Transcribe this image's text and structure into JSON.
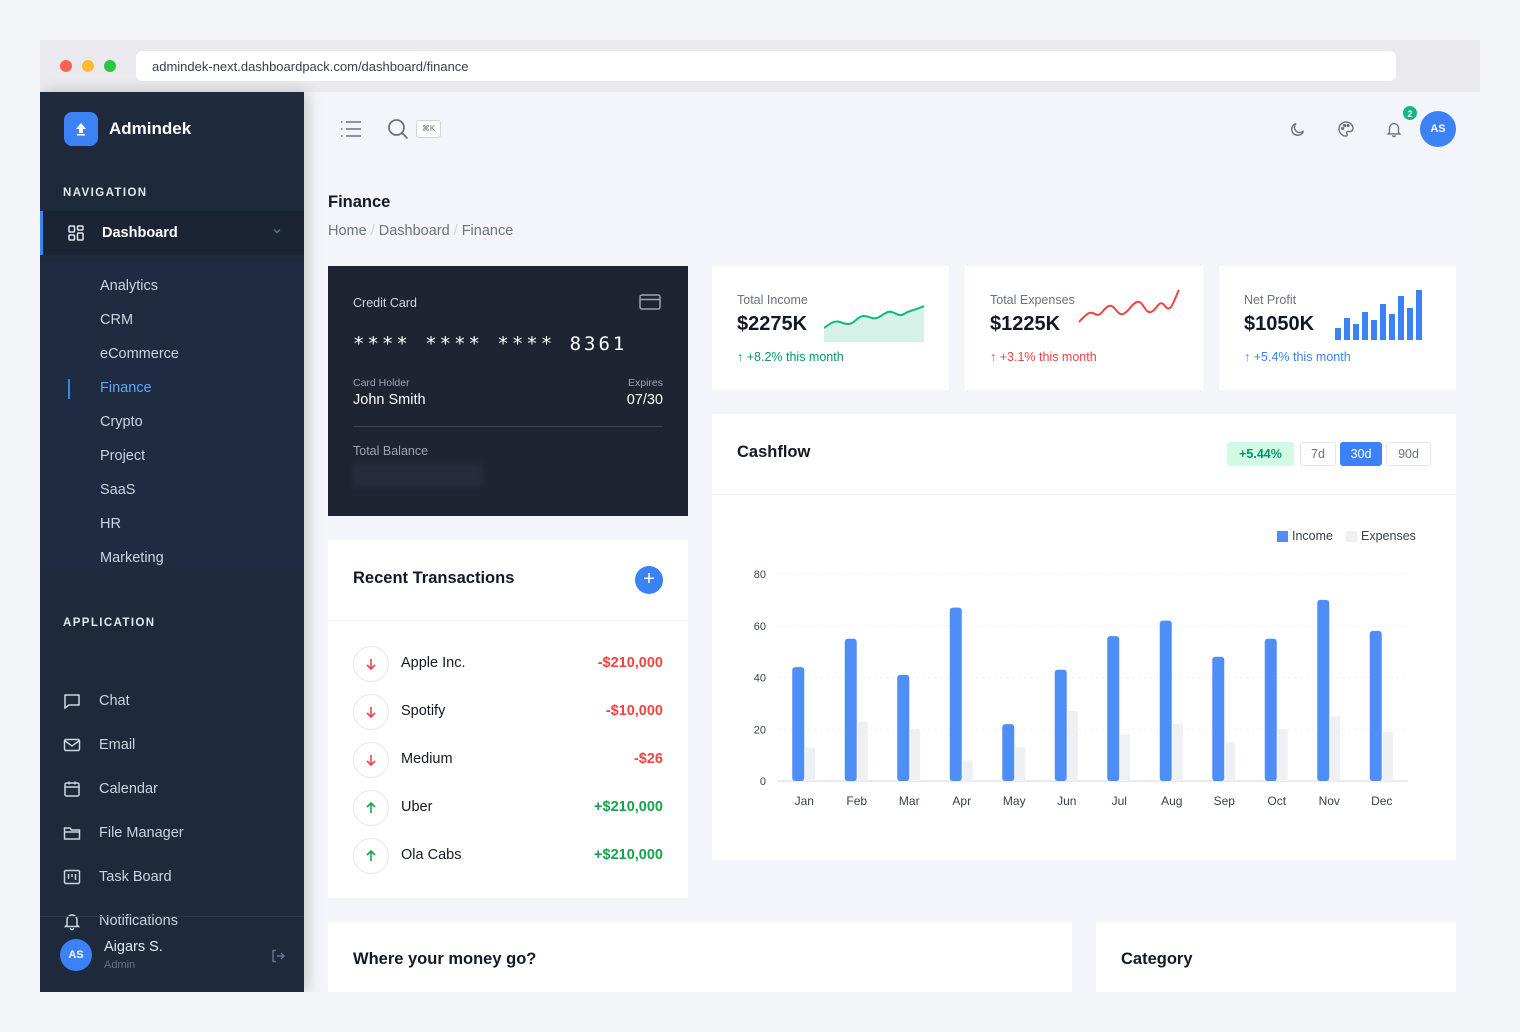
{
  "browser": {
    "url": "admindek-next.dashboardpack.com/dashboard/finance"
  },
  "sidebar": {
    "brand": "Admindek",
    "nav_title": "NAVIGATION",
    "dashboard_label": "Dashboard",
    "dashboard_items": [
      "Analytics",
      "CRM",
      "eCommerce",
      "Finance",
      "Crypto",
      "Project",
      "SaaS",
      "HR",
      "Marketing"
    ],
    "active_item": "Finance",
    "app_title": "APPLICATION",
    "app_items": [
      {
        "label": "Chat",
        "icon": "chat-icon"
      },
      {
        "label": "Email",
        "icon": "mail-icon"
      },
      {
        "label": "Calendar",
        "icon": "calendar-icon"
      },
      {
        "label": "File Manager",
        "icon": "folder-icon"
      },
      {
        "label": "Task Board",
        "icon": "kanban-icon"
      },
      {
        "label": "Notifications",
        "icon": "bell-icon"
      }
    ],
    "user": {
      "initials": "AS",
      "name": "Aigars S.",
      "role": "Admin"
    }
  },
  "topbar": {
    "shortcut": "⌘K",
    "notification_count": "2",
    "avatar_initials": "AS",
    "icons": [
      "menu-icon",
      "search-icon",
      "moon-icon",
      "palette-icon",
      "bell-icon"
    ]
  },
  "page": {
    "title": "Finance",
    "breadcrumb": [
      "Home",
      "Dashboard",
      "Finance"
    ]
  },
  "credit_card": {
    "label": "Credit Card",
    "masked": "**** **** ****",
    "last4": "8361",
    "holder_label": "Card Holder",
    "holder": "John Smith",
    "expires_label": "Expires",
    "expires": "07/30",
    "balance_label": "Total Balance"
  },
  "stats": [
    {
      "label": "Total Income",
      "value": "$2275K",
      "delta": "+8.2% this month",
      "color": "#10b981"
    },
    {
      "label": "Total Expenses",
      "value": "$1225K",
      "delta": "+3.1% this month",
      "color": "#ef4444"
    },
    {
      "label": "Net Profit",
      "value": "$1050K",
      "delta": "+5.4% this month",
      "color": "#3b82f6"
    }
  ],
  "cashflow": {
    "title": "Cashflow",
    "change": "+5.44%",
    "ranges": [
      "7d",
      "30d",
      "90d"
    ],
    "active_range": "30d"
  },
  "chart_data": {
    "type": "bar",
    "categories": [
      "Jan",
      "Feb",
      "Mar",
      "Apr",
      "May",
      "Jun",
      "Jul",
      "Aug",
      "Sep",
      "Oct",
      "Nov",
      "Dec"
    ],
    "series": [
      {
        "name": "Income",
        "color": "#4f8df7",
        "values": [
          44,
          55,
          41,
          67,
          22,
          43,
          56,
          62,
          48,
          55,
          70,
          58
        ]
      },
      {
        "name": "Expenses",
        "color": "#eef0f4",
        "values": [
          13,
          23,
          20,
          8,
          13,
          27,
          18,
          22,
          15,
          20,
          25,
          19
        ]
      }
    ],
    "ylim": [
      0,
      80
    ],
    "yticks": [
      0,
      20,
      40,
      60,
      80
    ],
    "legend": "top-right",
    "grid": true
  },
  "transactions": {
    "title": "Recent Transactions",
    "add_label": "+",
    "items": [
      {
        "name": "Apple Inc.",
        "amount": "-$210,000",
        "direction": "down"
      },
      {
        "name": "Spotify",
        "amount": "-$10,000",
        "direction": "down"
      },
      {
        "name": "Medium",
        "amount": "-$26",
        "direction": "down"
      },
      {
        "name": "Uber",
        "amount": "+$210,000",
        "direction": "up"
      },
      {
        "name": "Ola Cabs",
        "amount": "+$210,000",
        "direction": "up"
      }
    ]
  },
  "bottom": {
    "money_title": "Where your money go?",
    "category_title": "Category"
  },
  "colors": {
    "accent": "#3b82f6",
    "sidebar_bg": "#1e293b",
    "positive": "#16a34a",
    "negative": "#ef4444"
  }
}
